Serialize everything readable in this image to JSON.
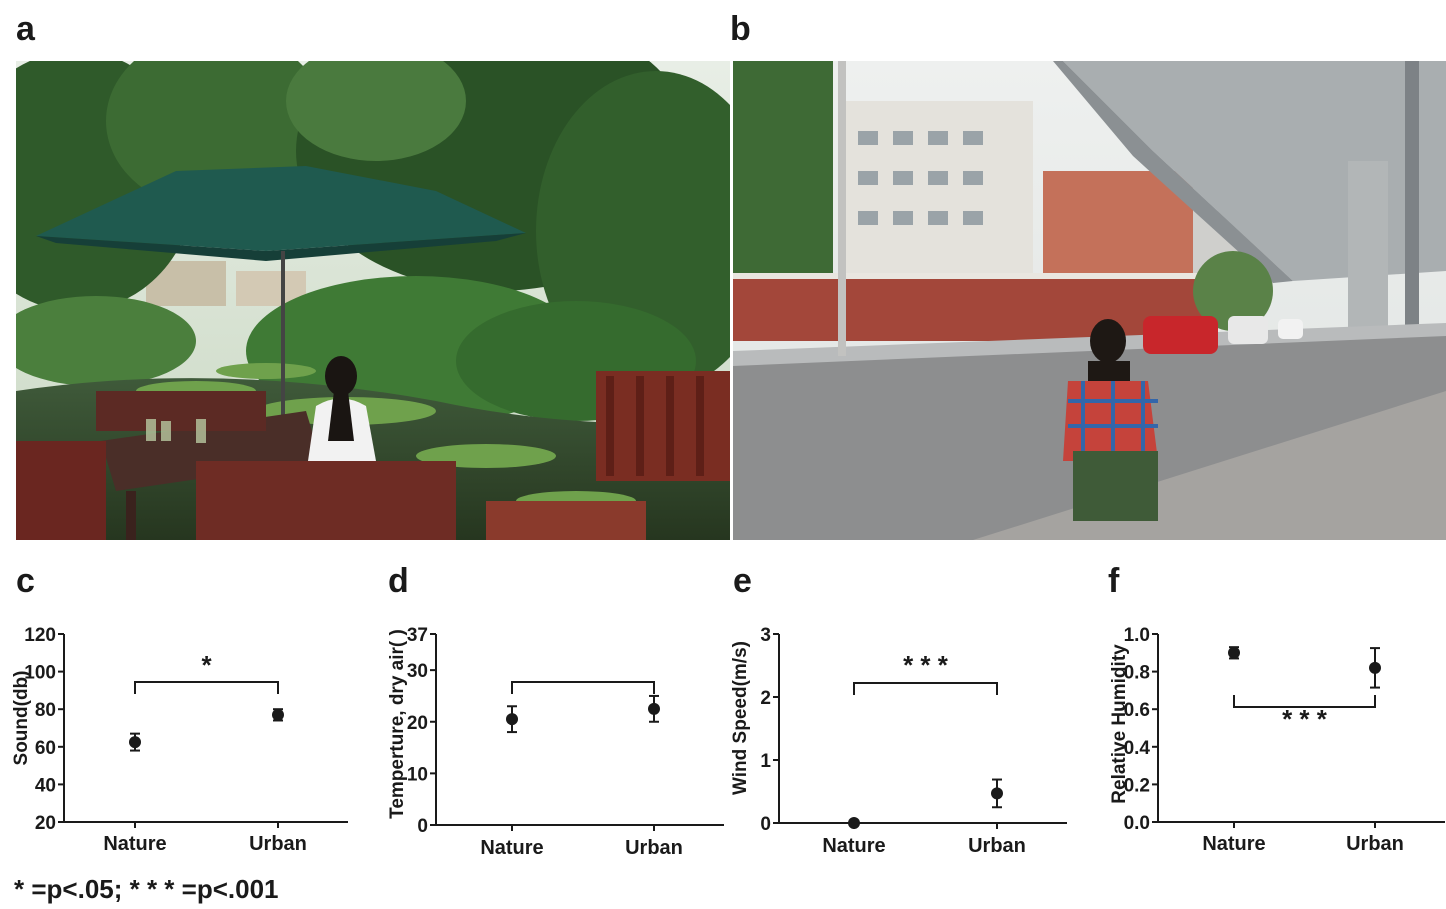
{
  "panels": {
    "a": "a",
    "b": "b",
    "c": "c",
    "d": "d",
    "e": "e",
    "f": "f"
  },
  "legend_note": "* =p<.05; * * * =p<.001",
  "photos": {
    "a": {
      "alt": "woman seated at a garden pond with umbrella"
    },
    "b": {
      "alt": "woman seated beside an urban road under an overpass"
    }
  },
  "colors": {
    "marker": "#1a1a1a",
    "axis": "#1a1a1a"
  },
  "chart_data": [
    {
      "type": "scatter",
      "panel": "c",
      "categories": [
        "Nature",
        "Urban"
      ],
      "values": [
        62.5,
        77
      ],
      "errors": [
        4.5,
        3
      ],
      "ylabel": "Sound(db)",
      "ylim": [
        20,
        120
      ],
      "yticks": [
        20,
        40,
        60,
        80,
        100,
        120
      ],
      "significance": {
        "label": "*",
        "position": "above"
      }
    },
    {
      "type": "scatter",
      "panel": "d",
      "categories": [
        "Nature",
        "Urban"
      ],
      "values": [
        20.5,
        22.5
      ],
      "errors": [
        2.5,
        2.5
      ],
      "ylabel": "Temperture, dry air(  )",
      "ylim": [
        0,
        37
      ],
      "yticks": [
        0,
        10,
        20,
        30,
        37
      ],
      "significance": {
        "label": "",
        "position": "above"
      }
    },
    {
      "type": "scatter",
      "panel": "e",
      "categories": [
        "Nature",
        "Urban"
      ],
      "values": [
        0,
        0.47
      ],
      "errors": [
        0,
        0.22
      ],
      "ylabel": "Wind Speed(m/s)",
      "ylim": [
        0,
        3
      ],
      "yticks": [
        0,
        1,
        2,
        3
      ],
      "significance": {
        "label": "* * *",
        "position": "above"
      }
    },
    {
      "type": "scatter",
      "panel": "f",
      "categories": [
        "Nature",
        "Urban"
      ],
      "values": [
        0.9,
        0.82
      ],
      "errors": [
        0.03,
        0.105
      ],
      "ylabel": "Relative Humidity",
      "ylim": [
        0,
        1.0
      ],
      "yticks": [
        "0.0",
        "0.2",
        "0.4",
        "0.6",
        "0.8",
        "1.0"
      ],
      "significance": {
        "label": "* * *",
        "position": "below"
      }
    }
  ]
}
